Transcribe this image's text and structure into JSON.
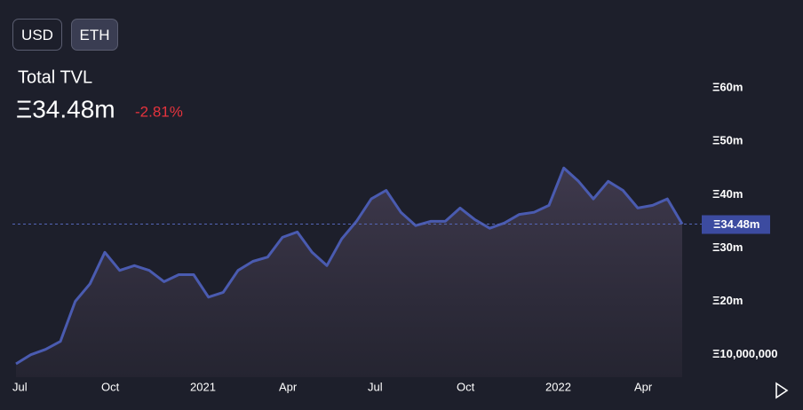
{
  "currency_buttons": [
    "USD",
    "ETH"
  ],
  "header": {
    "title": "Total TVL",
    "value": "Ξ34.48m",
    "change": "-2.81%"
  },
  "chart_data": {
    "type": "area",
    "color": "#4a5bb0",
    "grid": false,
    "categories": [
      "Jul",
      null,
      null,
      null,
      null,
      null,
      "Oct",
      null,
      null,
      null,
      null,
      null,
      "2021",
      null,
      null,
      null,
      null,
      null,
      "Apr",
      null,
      null,
      null,
      null,
      null,
      "Jul",
      null,
      null,
      null,
      null,
      null,
      "Oct",
      null,
      null,
      null,
      null,
      null,
      "2022",
      null,
      null,
      null,
      null,
      null,
      "Apr",
      null,
      null,
      null
    ],
    "values": [
      8300000,
      10000000,
      11000000,
      12500000,
      20000000,
      23300000,
      29200000,
      25800000,
      26700000,
      25800000,
      23700000,
      25000000,
      25000000,
      20800000,
      21700000,
      25800000,
      27500000,
      28300000,
      32000000,
      33000000,
      29200000,
      26700000,
      31700000,
      35000000,
      39200000,
      40800000,
      36700000,
      34200000,
      35000000,
      35000000,
      37500000,
      35300000,
      33700000,
      34700000,
      36300000,
      36700000,
      38000000,
      45000000,
      42500000,
      39200000,
      42500000,
      40800000,
      37500000,
      38000000,
      39200000,
      34480000
    ],
    "ylim": [
      5800000,
      64000000
    ],
    "yticks": [
      {
        "value": 10000000,
        "label": "Ξ10,000,000"
      },
      {
        "value": 20000000,
        "label": "Ξ20m"
      },
      {
        "value": 30000000,
        "label": "Ξ30m"
      },
      {
        "value": 40000000,
        "label": "Ξ40m"
      },
      {
        "value": 50000000,
        "label": "Ξ50m"
      },
      {
        "value": 60000000,
        "label": "Ξ60m"
      }
    ],
    "current_line": {
      "value": 34480000,
      "label": "Ξ34.48m"
    }
  }
}
